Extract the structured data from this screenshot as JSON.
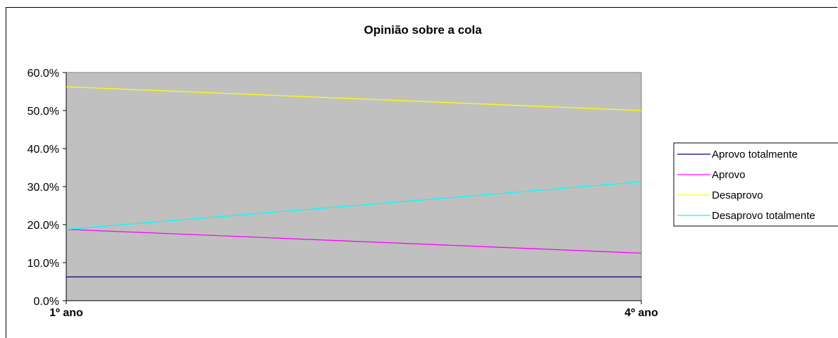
{
  "chart_data": {
    "type": "line",
    "title": "Opinião sobre a cola",
    "xlabel": "",
    "ylabel": "",
    "categories": [
      "1º ano",
      "4º ano"
    ],
    "ylim": [
      0,
      0.6
    ],
    "y_ticks": [
      "0.0%",
      "10.0%",
      "20.0%",
      "30.0%",
      "40.0%",
      "50.0%",
      "60.0%"
    ],
    "grid": false,
    "plot_background": "#c0c0c0",
    "legend_position": "right",
    "series": [
      {
        "name": "Aprovo totalmente",
        "color": "#000080",
        "values": [
          0.0625,
          0.0625
        ]
      },
      {
        "name": "Aprovo",
        "color": "#ff00ff",
        "values": [
          0.1875,
          0.125
        ]
      },
      {
        "name": "Desaprovo",
        "color": "#ffff00",
        "values": [
          0.5625,
          0.5
        ]
      },
      {
        "name": "Desaprovo totalmente",
        "color": "#00ffff",
        "values": [
          0.1875,
          0.3125
        ]
      }
    ]
  }
}
